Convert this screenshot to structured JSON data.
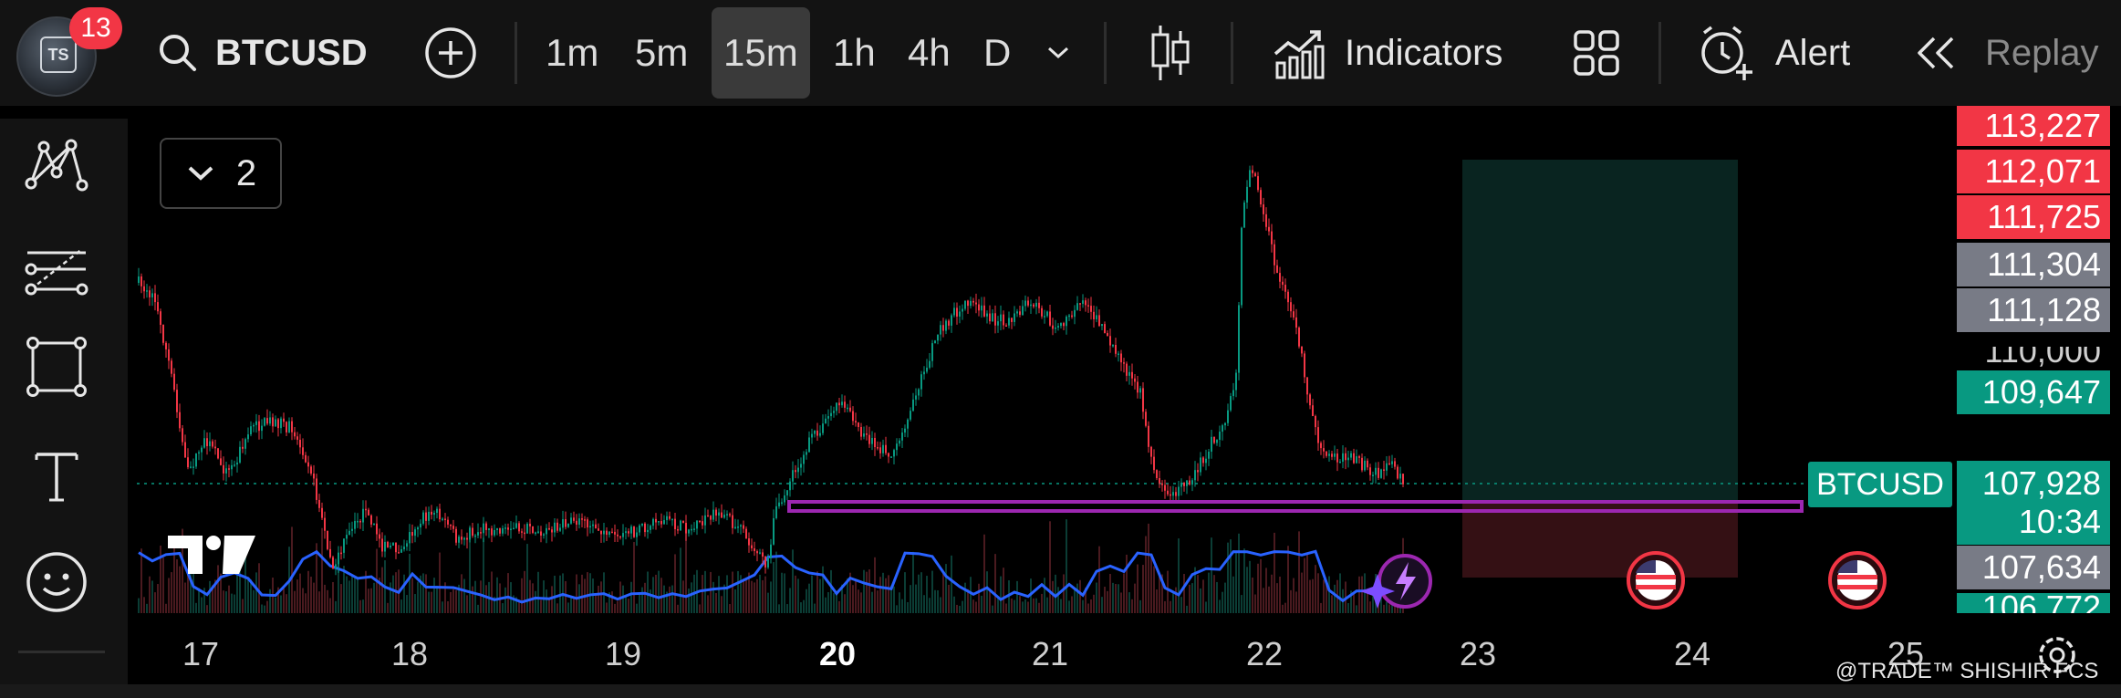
{
  "app": {
    "notification_count": "13",
    "avatar_text": "TS"
  },
  "toolbar": {
    "symbol": "BTCUSD",
    "intervals": [
      "1m",
      "5m",
      "15m",
      "1h",
      "4h",
      "D"
    ],
    "active_interval": "15m",
    "indicators_label": "Indicators",
    "alert_label": "Alert",
    "replay_label": "Replay"
  },
  "chart": {
    "layout_count": "2",
    "symbol_tag": "BTCUSD",
    "countdown": "10:34",
    "price_scale": [
      {
        "value": "113,227",
        "color": "#f23645"
      },
      {
        "value": "112,071",
        "color": "#f23645"
      },
      {
        "value": "111,725",
        "color": "#f23645"
      },
      {
        "value": "111,304",
        "color": "#787b86"
      },
      {
        "value": "111,128",
        "color": "#787b86"
      },
      {
        "value": "110,000",
        "color": "none"
      },
      {
        "value": "109,647",
        "color": "#089981"
      },
      {
        "value": "107,928",
        "color": "#089981"
      },
      {
        "value": "107,634",
        "color": "#787b86"
      },
      {
        "value": "106,772",
        "color": "#089981"
      }
    ],
    "x_labels": [
      "17",
      "18",
      "19",
      "20",
      "21",
      "22",
      "23",
      "24",
      "25"
    ],
    "bold_x_label": "20",
    "watermark": "@TRADE™ SHISHIR FCS",
    "colors": {
      "up": "#089981",
      "down": "#f23645",
      "support_line": "#9c27b0",
      "volume_ma": "#2962ff",
      "target_zone": "#0a2a26",
      "stop_zone": "#3a1216"
    }
  }
}
